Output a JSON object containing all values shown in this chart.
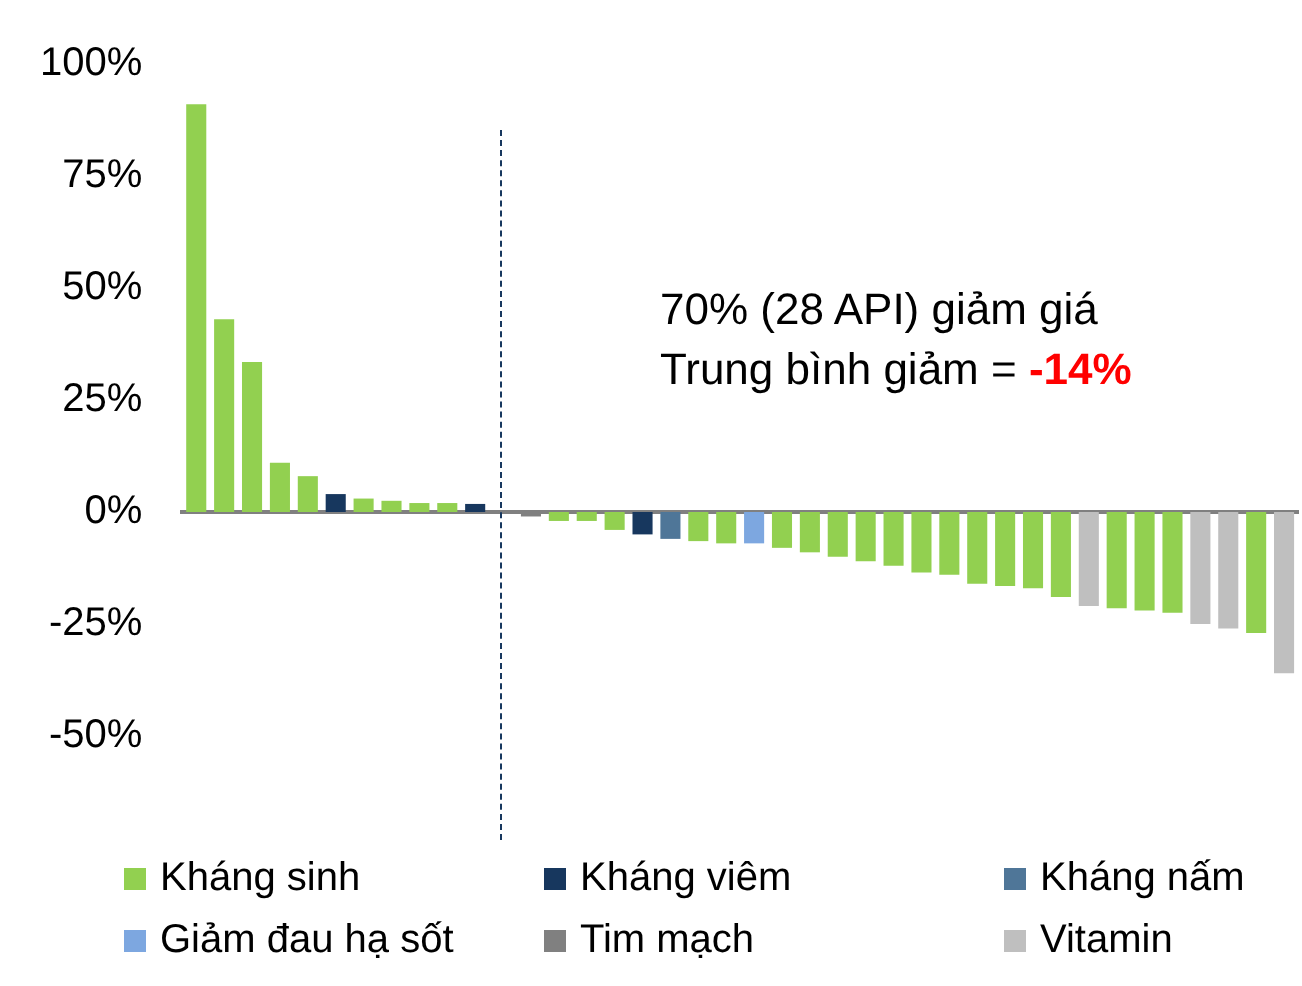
{
  "chart_data": {
    "type": "bar",
    "stacked": true,
    "categories": [
      null,
      null,
      null,
      null,
      null,
      null,
      null,
      null,
      null,
      null,
      null,
      null,
      null,
      null,
      null,
      null,
      null,
      null,
      null,
      null,
      null,
      null,
      null,
      null,
      null,
      null,
      null,
      null,
      null,
      null,
      null,
      null,
      null,
      null,
      null,
      null,
      null,
      null,
      null,
      null
    ],
    "series": [
      {
        "name": "Kháng sinh",
        "color": "#92d050",
        "values": [
          91,
          43,
          33.5,
          11,
          8,
          null,
          3,
          2.5,
          2,
          2,
          null,
          null,
          null,
          -2,
          -2,
          -4,
          null,
          null,
          -6.5,
          -7,
          null,
          -8,
          -9,
          -10,
          -11,
          -12,
          -13.5,
          -14,
          -16,
          -16.5,
          -17,
          -19,
          null,
          -21.5,
          -22,
          -22.5,
          null,
          null,
          -27,
          null
        ]
      },
      {
        "name": "Kháng viêm",
        "color": "#17375e",
        "values": [
          null,
          null,
          null,
          null,
          null,
          4,
          null,
          null,
          null,
          null,
          1.8,
          null,
          null,
          null,
          null,
          null,
          -5,
          null,
          null,
          null,
          null,
          null,
          null,
          null,
          null,
          null,
          null,
          null,
          null,
          null,
          null,
          null,
          null,
          null,
          null,
          null,
          null,
          null,
          null,
          null
        ]
      },
      {
        "name": "Kháng nấm",
        "color": "#4f7698",
        "values": [
          null,
          null,
          null,
          null,
          null,
          null,
          null,
          null,
          null,
          null,
          null,
          null,
          null,
          null,
          null,
          null,
          null,
          -6,
          null,
          null,
          null,
          null,
          null,
          null,
          null,
          null,
          null,
          null,
          null,
          null,
          null,
          null,
          null,
          null,
          null,
          null,
          null,
          null,
          null,
          null
        ]
      },
      {
        "name": "Giảm đau hạ sốt",
        "color": "#7da7e0",
        "values": [
          null,
          null,
          null,
          null,
          null,
          null,
          null,
          null,
          null,
          null,
          null,
          null,
          null,
          null,
          null,
          null,
          null,
          null,
          null,
          null,
          -7,
          null,
          null,
          null,
          null,
          null,
          null,
          null,
          null,
          null,
          null,
          null,
          null,
          null,
          null,
          null,
          null,
          null,
          null,
          null
        ]
      },
      {
        "name": "Tim mạch",
        "color": "#808080",
        "values": [
          null,
          null,
          null,
          null,
          null,
          null,
          null,
          null,
          null,
          null,
          null,
          null,
          -1,
          null,
          null,
          null,
          null,
          null,
          null,
          null,
          null,
          null,
          null,
          null,
          null,
          null,
          null,
          null,
          null,
          null,
          null,
          null,
          null,
          null,
          null,
          null,
          null,
          null,
          null,
          null
        ]
      },
      {
        "name": "Vitamin",
        "color": "#bfbfbf",
        "values": [
          null,
          null,
          null,
          null,
          null,
          null,
          null,
          null,
          null,
          null,
          null,
          null,
          null,
          null,
          null,
          null,
          null,
          null,
          null,
          null,
          null,
          null,
          null,
          null,
          null,
          null,
          null,
          null,
          null,
          null,
          null,
          null,
          -21,
          null,
          null,
          null,
          -25,
          -26,
          null,
          -36
        ]
      }
    ],
    "ylim": [
      -50,
      100
    ],
    "yticks": [
      {
        "value": -50,
        "label": "-50%"
      },
      {
        "value": -25,
        "label": "-25%"
      },
      {
        "value": 0,
        "label": "0%"
      },
      {
        "value": 25,
        "label": "25%"
      },
      {
        "value": 50,
        "label": "50%"
      },
      {
        "value": 75,
        "label": "75%"
      },
      {
        "value": 100,
        "label": "100%"
      }
    ],
    "tick_labels": "y",
    "grid": false,
    "legend": "bottom",
    "annotations": [
      "70% (28 API) giảm giá",
      "Trung bình giảm =",
      "-14%"
    ]
  }
}
